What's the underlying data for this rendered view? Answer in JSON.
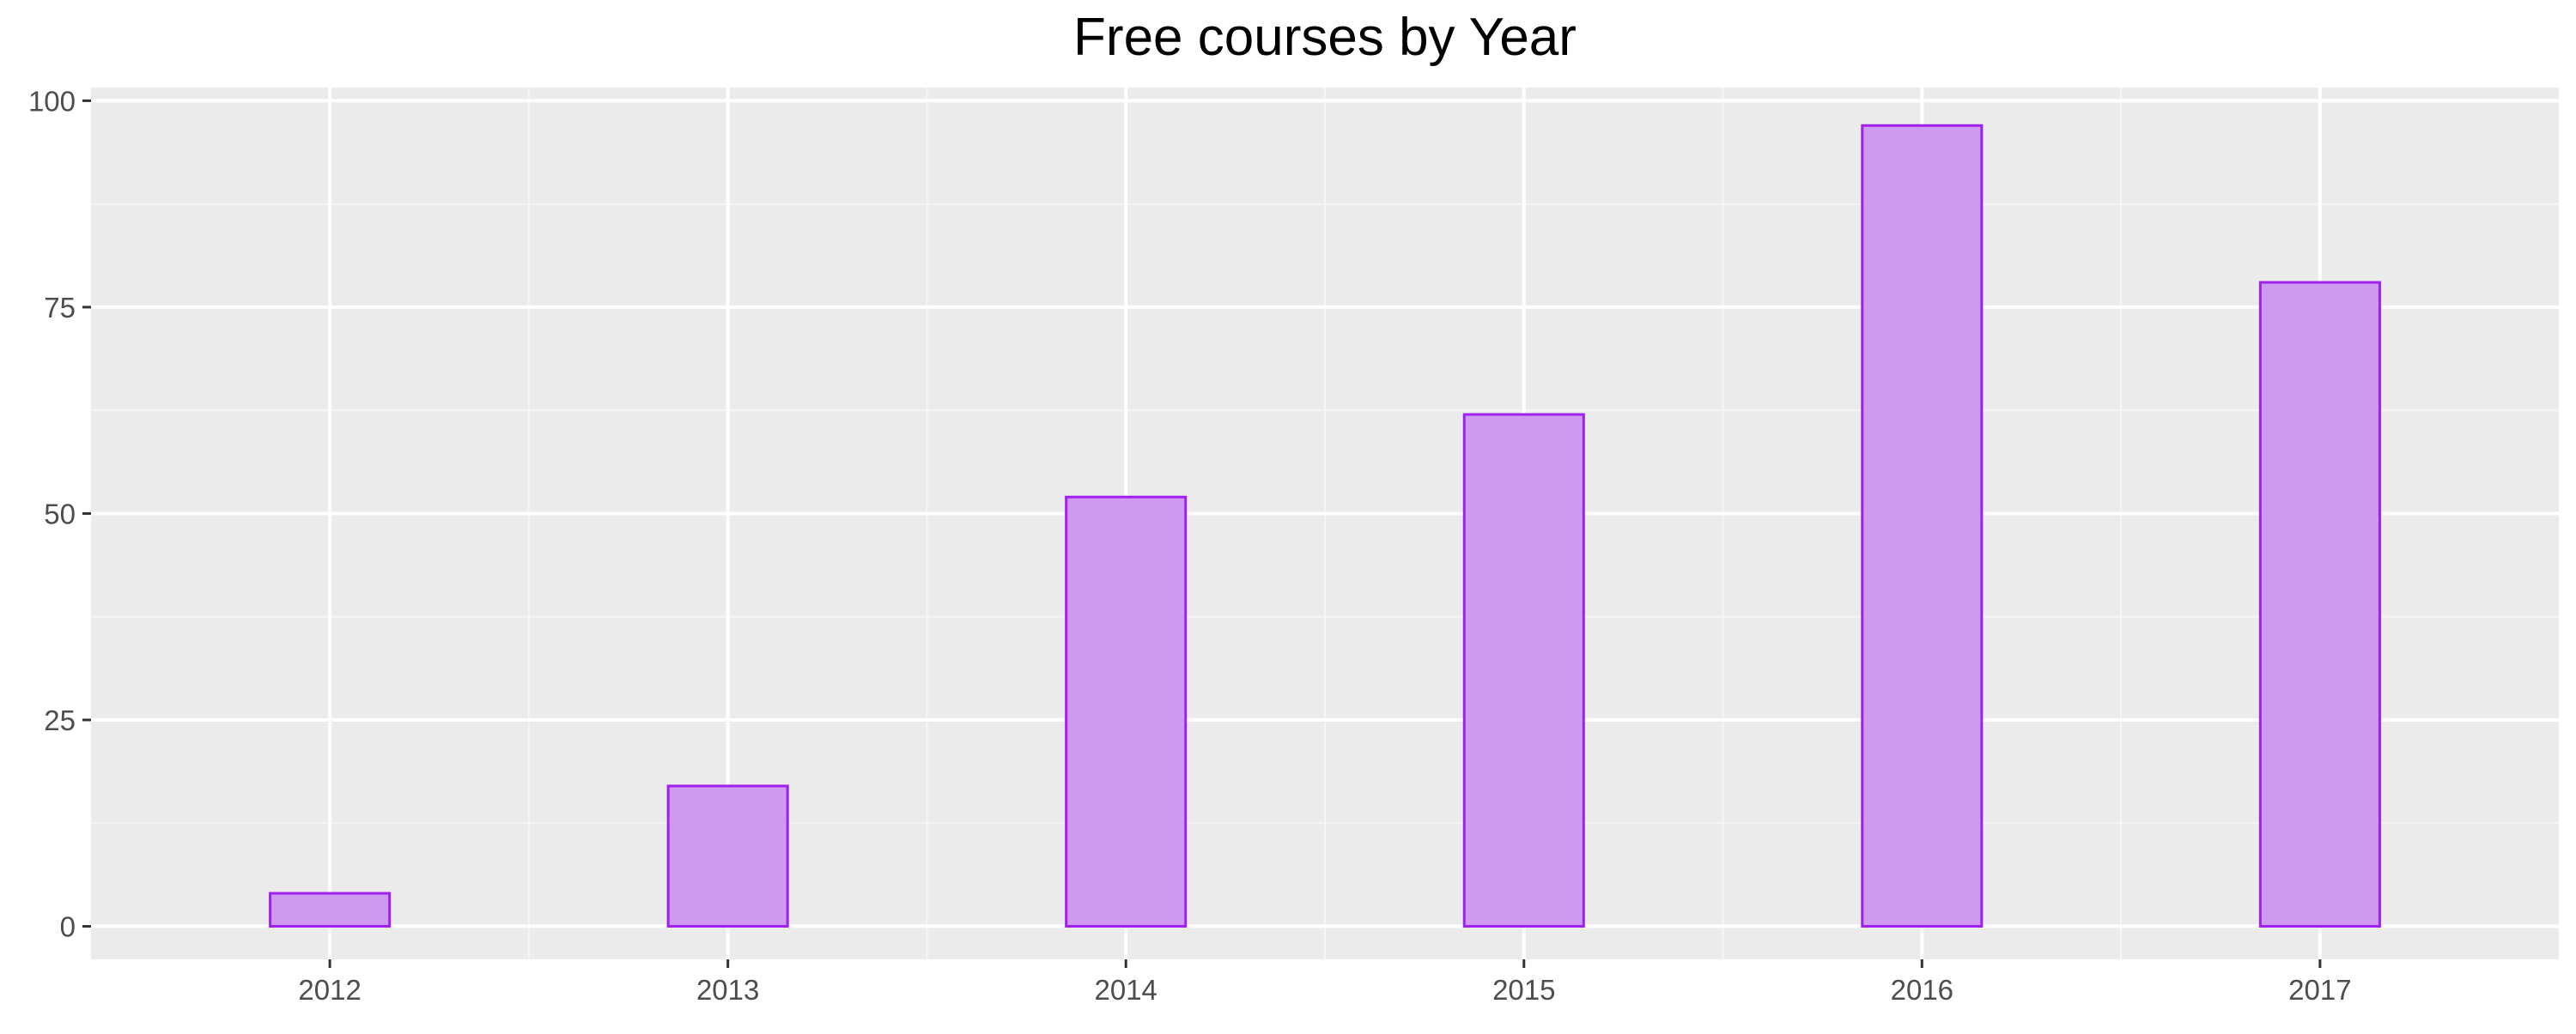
{
  "chart_data": {
    "type": "bar",
    "title": "Free courses by Year",
    "xlabel": "",
    "ylabel": "",
    "categories": [
      "2012",
      "2013",
      "2014",
      "2015",
      "2016",
      "2017"
    ],
    "values": [
      4,
      17,
      52,
      62,
      97,
      78
    ],
    "ylim": [
      -4,
      101.6
    ],
    "yticks": [
      0,
      25,
      50,
      75,
      100
    ],
    "ytick_labels": [
      "0",
      "25",
      "50",
      "75",
      "100"
    ],
    "grid": true,
    "legend": "none",
    "colors": {
      "bar_fill": "#cd9af0",
      "bar_stroke": "#a020f0",
      "panel_background": "#ebebeb",
      "grid_major": "#ffffff",
      "grid_minor": "#f5f5f5",
      "tick_text": "#4d4d4d",
      "title_text": "#000000"
    }
  }
}
